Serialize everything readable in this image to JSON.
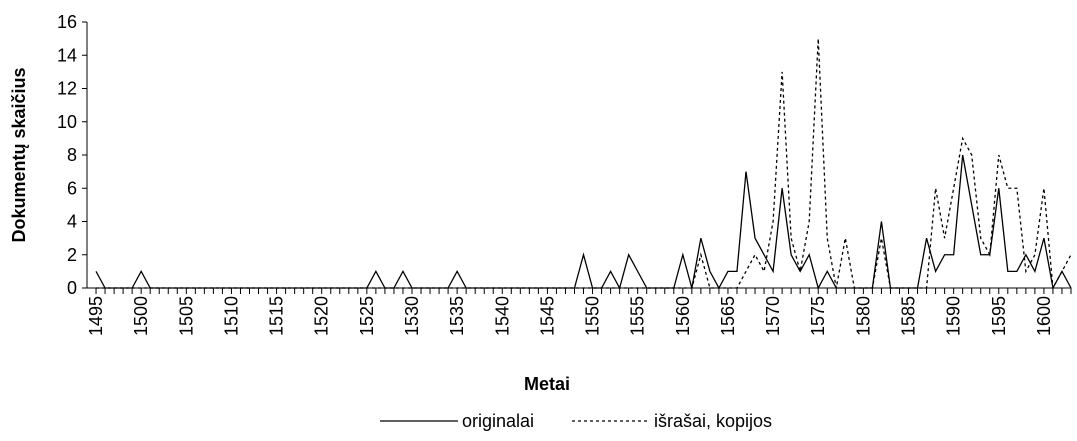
{
  "chart_data": {
    "type": "line",
    "x_label": "Metai",
    "y_label": "Dokumentų skaičius",
    "x": [
      1495,
      1496,
      1497,
      1498,
      1499,
      1500,
      1501,
      1502,
      1503,
      1504,
      1505,
      1506,
      1507,
      1508,
      1509,
      1510,
      1511,
      1512,
      1513,
      1514,
      1515,
      1516,
      1517,
      1518,
      1519,
      1520,
      1521,
      1522,
      1523,
      1524,
      1525,
      1526,
      1527,
      1528,
      1529,
      1530,
      1531,
      1532,
      1533,
      1534,
      1535,
      1536,
      1537,
      1538,
      1539,
      1540,
      1541,
      1542,
      1543,
      1544,
      1545,
      1546,
      1547,
      1548,
      1549,
      1550,
      1551,
      1552,
      1553,
      1554,
      1555,
      1556,
      1557,
      1558,
      1559,
      1560,
      1561,
      1562,
      1563,
      1564,
      1565,
      1566,
      1567,
      1568,
      1569,
      1570,
      1571,
      1572,
      1573,
      1574,
      1575,
      1576,
      1577,
      1578,
      1579,
      1580,
      1581,
      1582,
      1583,
      1584,
      1585,
      1586,
      1587,
      1588,
      1589,
      1590,
      1591,
      1592,
      1593,
      1594,
      1595,
      1596,
      1597,
      1598,
      1599,
      1600,
      1601,
      1602,
      1603
    ],
    "series": [
      {
        "name": "originalai",
        "color": "#000000",
        "dash": false,
        "values": [
          1,
          0,
          0,
          0,
          0,
          1,
          0,
          0,
          0,
          0,
          0,
          0,
          0,
          0,
          0,
          0,
          0,
          0,
          0,
          0,
          0,
          0,
          0,
          0,
          0,
          0,
          0,
          0,
          0,
          0,
          0,
          1,
          0,
          0,
          1,
          0,
          0,
          0,
          0,
          0,
          1,
          0,
          0,
          0,
          0,
          0,
          0,
          0,
          0,
          0,
          0,
          0,
          0,
          0,
          2,
          0,
          0,
          1,
          0,
          2,
          1,
          0,
          0,
          0,
          0,
          2,
          0,
          3,
          1,
          0,
          1,
          1,
          7,
          3,
          2,
          1,
          6,
          2,
          1,
          2,
          0,
          1,
          0,
          0,
          0,
          0,
          0,
          4,
          0,
          0,
          0,
          0,
          3,
          1,
          2,
          2,
          8,
          5,
          2,
          2,
          6,
          1,
          1,
          2,
          1,
          3,
          0,
          1,
          0
        ]
      },
      {
        "name": "išrašai, kopijos",
        "color": "#000000",
        "dash": true,
        "values": [
          0,
          0,
          0,
          0,
          0,
          0,
          0,
          0,
          0,
          0,
          0,
          0,
          0,
          0,
          0,
          0,
          0,
          0,
          0,
          0,
          0,
          0,
          0,
          0,
          0,
          0,
          0,
          0,
          0,
          0,
          0,
          0,
          0,
          0,
          0,
          0,
          0,
          0,
          0,
          0,
          0,
          0,
          0,
          0,
          0,
          0,
          0,
          0,
          0,
          0,
          0,
          0,
          0,
          0,
          0,
          0,
          0,
          0,
          0,
          0,
          0,
          0,
          0,
          0,
          0,
          0,
          0,
          2,
          0,
          0,
          0,
          0,
          1,
          2,
          1,
          4,
          13,
          3,
          1,
          4,
          15,
          3,
          0,
          3,
          0,
          0,
          0,
          3,
          0,
          0,
          0,
          0,
          0,
          6,
          3,
          6,
          9,
          8,
          3,
          2,
          8,
          6,
          6,
          1,
          2,
          6,
          0,
          1,
          2
        ]
      }
    ],
    "xlim": [
      1494,
      1603
    ],
    "xticks": [
      1495,
      1500,
      1505,
      1510,
      1515,
      1520,
      1525,
      1530,
      1535,
      1540,
      1545,
      1550,
      1555,
      1560,
      1565,
      1570,
      1575,
      1580,
      1585,
      1590,
      1595,
      1600
    ],
    "ylim": [
      0,
      16
    ],
    "yticks": [
      0,
      2,
      4,
      6,
      8,
      10,
      12,
      14,
      16
    ],
    "grid": false,
    "legend": "bottom"
  }
}
